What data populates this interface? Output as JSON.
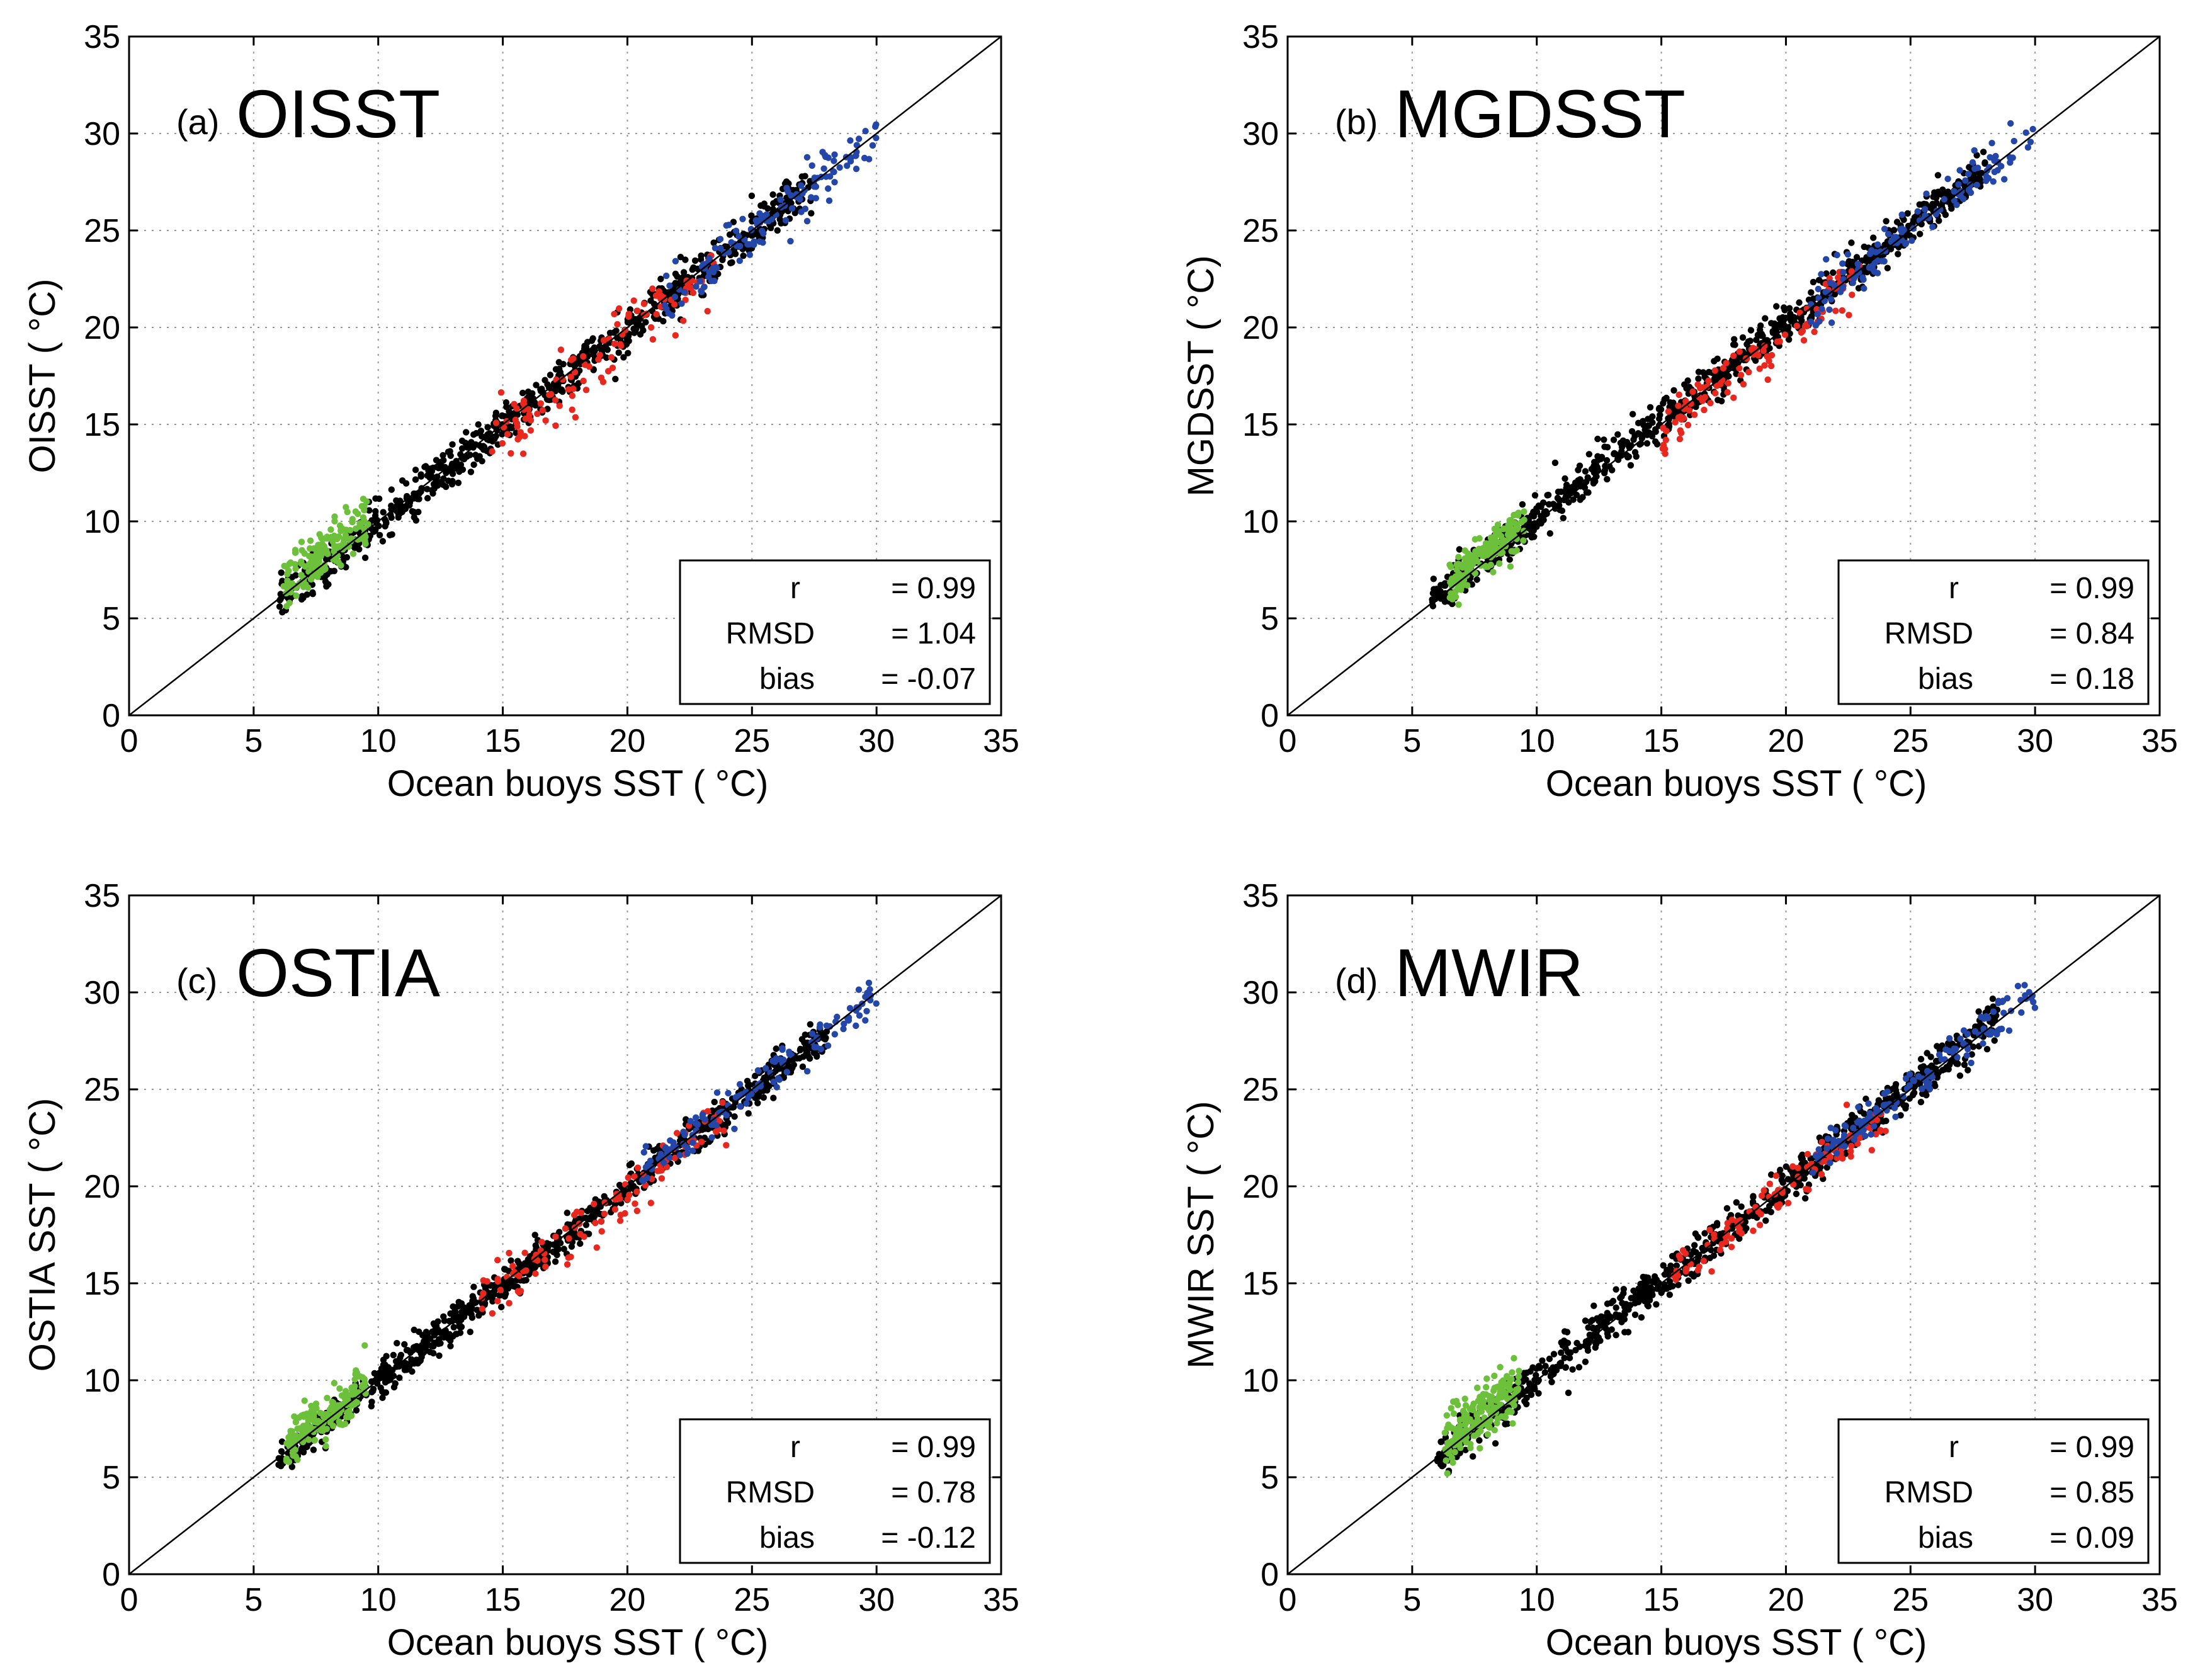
{
  "figure": {
    "description_colors": {
      "black": "#000000",
      "red": "#e8281e",
      "blue": "#2346a8",
      "green": "#6cc03a",
      "grid": "#9a9a9a"
    }
  },
  "chart_data": [
    {
      "type": "scatter",
      "panel_tag": "(a)",
      "title": "OISST",
      "xlabel": "Ocean buoys SST (  °C)",
      "ylabel": "OISST (  °C)",
      "xlim": [
        0,
        35
      ],
      "ylim": [
        0,
        35
      ],
      "xticks": [
        0,
        5,
        10,
        15,
        20,
        25,
        30,
        35
      ],
      "yticks": [
        0,
        5,
        10,
        15,
        20,
        25,
        30,
        35
      ],
      "grid": true,
      "reference_line": "1:1",
      "stats": [
        {
          "label": "r",
          "eq": "= 0.99"
        },
        {
          "label": "RMSD",
          "eq": "= 1.04"
        },
        {
          "label": "bias",
          "eq": "= -0.07"
        }
      ],
      "series": [
        {
          "name": "black",
          "color": "#000000",
          "n": 780,
          "x_range": [
            6.0,
            27.5
          ],
          "offset": -0.1,
          "spread": 0.55,
          "seed": 11
        },
        {
          "name": "green",
          "color": "#6cc03a",
          "n": 170,
          "x_range": [
            6.2,
            9.6
          ],
          "offset": 0.6,
          "spread": 0.6,
          "seed": 12
        },
        {
          "name": "red",
          "color": "#e8281e",
          "n": 110,
          "x_range": [
            14.5,
            23.5
          ],
          "offset": -0.6,
          "spread": 0.9,
          "seed": 13
        },
        {
          "name": "blue",
          "color": "#2346a8",
          "n": 130,
          "x_range": [
            21.5,
            30.0
          ],
          "offset": -0.1,
          "spread": 0.6,
          "seed": 14
        }
      ]
    },
    {
      "type": "scatter",
      "panel_tag": "(b)",
      "title": "MGDSST",
      "xlabel": "Ocean buoys SST (  °C)",
      "ylabel": "MGDSST (  °C)",
      "xlim": [
        0,
        35
      ],
      "ylim": [
        0,
        35
      ],
      "xticks": [
        0,
        5,
        10,
        15,
        20,
        25,
        30,
        35
      ],
      "yticks": [
        0,
        5,
        10,
        15,
        20,
        25,
        30,
        35
      ],
      "grid": true,
      "reference_line": "1:1",
      "stats": [
        {
          "label": "r",
          "eq": "= 0.99"
        },
        {
          "label": "RMSD",
          "eq": "= 0.84"
        },
        {
          "label": "bias",
          "eq": "= 0.18"
        }
      ],
      "series": [
        {
          "name": "black",
          "color": "#000000",
          "n": 800,
          "x_range": [
            5.8,
            28.0
          ],
          "offset": 0.2,
          "spread": 0.5,
          "seed": 21
        },
        {
          "name": "green",
          "color": "#6cc03a",
          "n": 170,
          "x_range": [
            6.5,
            9.5
          ],
          "offset": 0.4,
          "spread": 0.5,
          "seed": 22
        },
        {
          "name": "red",
          "color": "#e8281e",
          "n": 110,
          "x_range": [
            15.0,
            23.0
          ],
          "offset": -0.4,
          "spread": 0.7,
          "seed": 23
        },
        {
          "name": "blue",
          "color": "#2346a8",
          "n": 130,
          "x_range": [
            21.0,
            30.0
          ],
          "offset": 0.0,
          "spread": 0.6,
          "seed": 24
        }
      ]
    },
    {
      "type": "scatter",
      "panel_tag": "(c)",
      "title": "OSTIA",
      "xlabel": "Ocean buoys SST (  °C)",
      "ylabel": "OSTIA SST (  °C)",
      "xlim": [
        0,
        35
      ],
      "ylim": [
        0,
        35
      ],
      "xticks": [
        0,
        5,
        10,
        15,
        20,
        25,
        30,
        35
      ],
      "yticks": [
        0,
        5,
        10,
        15,
        20,
        25,
        30,
        35
      ],
      "grid": true,
      "reference_line": "1:1",
      "stats": [
        {
          "label": "r",
          "eq": "= 0.99"
        },
        {
          "label": "RMSD",
          "eq": "= 0.78"
        },
        {
          "label": "bias",
          "eq": "= -0.12"
        }
      ],
      "series": [
        {
          "name": "black",
          "color": "#000000",
          "n": 800,
          "x_range": [
            6.0,
            28.0
          ],
          "offset": -0.1,
          "spread": 0.45,
          "seed": 31
        },
        {
          "name": "green",
          "color": "#6cc03a",
          "n": 170,
          "x_range": [
            6.3,
            9.5
          ],
          "offset": 0.3,
          "spread": 0.55,
          "seed": 32
        },
        {
          "name": "red",
          "color": "#e8281e",
          "n": 110,
          "x_range": [
            14.0,
            24.0
          ],
          "offset": -0.3,
          "spread": 0.7,
          "seed": 33
        },
        {
          "name": "blue",
          "color": "#2346a8",
          "n": 130,
          "x_range": [
            20.5,
            30.0
          ],
          "offset": 0.0,
          "spread": 0.55,
          "seed": 34
        }
      ]
    },
    {
      "type": "scatter",
      "panel_tag": "(d)",
      "title": "MWIR",
      "xlabel": "Ocean buoys SST (  °C)",
      "ylabel": "MWIR SST (  °C)",
      "xlim": [
        0,
        35
      ],
      "ylim": [
        0,
        35
      ],
      "xticks": [
        0,
        5,
        10,
        15,
        20,
        25,
        30,
        35
      ],
      "yticks": [
        0,
        5,
        10,
        15,
        20,
        25,
        30,
        35
      ],
      "grid": true,
      "reference_line": "1:1",
      "stats": [
        {
          "label": "r",
          "eq": "= 0.99"
        },
        {
          "label": "RMSD",
          "eq": "= 0.85"
        },
        {
          "label": "bias",
          "eq": "= 0.09"
        }
      ],
      "series": [
        {
          "name": "black",
          "color": "#000000",
          "n": 800,
          "x_range": [
            6.0,
            28.5
          ],
          "offset": 0.1,
          "spread": 0.55,
          "seed": 41
        },
        {
          "name": "green",
          "color": "#6cc03a",
          "n": 180,
          "x_range": [
            6.3,
            9.3
          ],
          "offset": 0.5,
          "spread": 0.75,
          "seed": 42
        },
        {
          "name": "red",
          "color": "#e8281e",
          "n": 110,
          "x_range": [
            15.5,
            24.0
          ],
          "offset": -0.2,
          "spread": 0.6,
          "seed": 43
        },
        {
          "name": "blue",
          "color": "#2346a8",
          "n": 130,
          "x_range": [
            21.0,
            30.0
          ],
          "offset": 0.1,
          "spread": 0.5,
          "seed": 44
        }
      ]
    }
  ]
}
